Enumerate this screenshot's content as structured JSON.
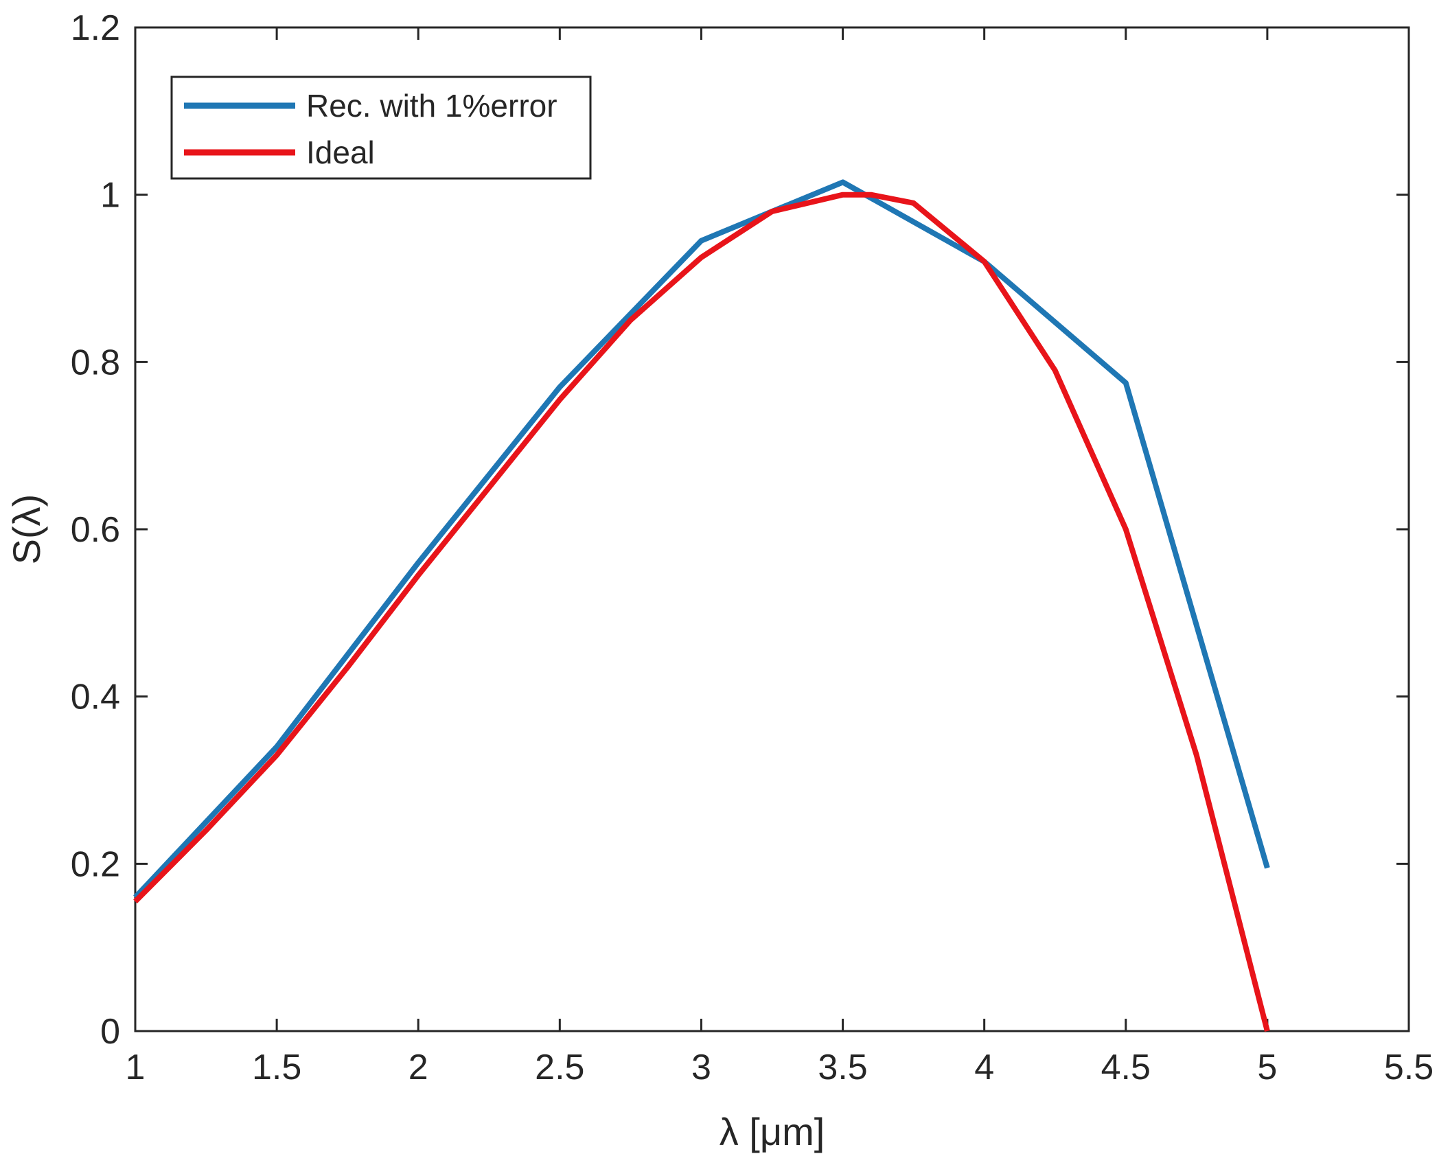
{
  "chart_data": {
    "type": "line",
    "title": "",
    "xlabel": "λ [μm]",
    "ylabel": "S(λ)",
    "xlim": [
      1,
      5.5
    ],
    "ylim": [
      0,
      1.2
    ],
    "xticks": [
      1,
      1.5,
      2,
      2.5,
      3,
      3.5,
      4,
      4.5,
      5,
      5.5
    ],
    "xtick_labels": [
      "1",
      "1.5",
      "2",
      "2.5",
      "3",
      "3.5",
      "4",
      "4.5",
      "5",
      "5.5"
    ],
    "yticks": [
      0,
      0.2,
      0.4,
      0.6,
      0.8,
      1,
      1.2
    ],
    "ytick_labels": [
      "0",
      "0.2",
      "0.4",
      "0.6",
      "0.8",
      "1",
      "1.2"
    ],
    "grid": false,
    "legend_position": "top-left",
    "series": [
      {
        "name": "Rec. with 1%error",
        "color": "#1f77b4",
        "x": [
          1.0,
          1.5,
          2.0,
          2.5,
          3.0,
          3.5,
          4.0,
          4.5,
          5.0
        ],
        "y": [
          0.16,
          0.34,
          0.56,
          0.77,
          0.945,
          1.015,
          0.92,
          0.775,
          0.195
        ]
      },
      {
        "name": "Ideal",
        "color": "#e8141a",
        "x": [
          1.0,
          1.25,
          1.5,
          1.75,
          2.0,
          2.25,
          2.5,
          2.75,
          3.0,
          3.25,
          3.5,
          3.6,
          3.75,
          4.0,
          4.25,
          4.5,
          4.75,
          5.0
        ],
        "y": [
          0.155,
          0.24,
          0.33,
          0.435,
          0.545,
          0.65,
          0.755,
          0.85,
          0.925,
          0.98,
          1.0,
          1.0,
          0.99,
          0.92,
          0.79,
          0.6,
          0.33,
          0.0
        ]
      }
    ]
  }
}
